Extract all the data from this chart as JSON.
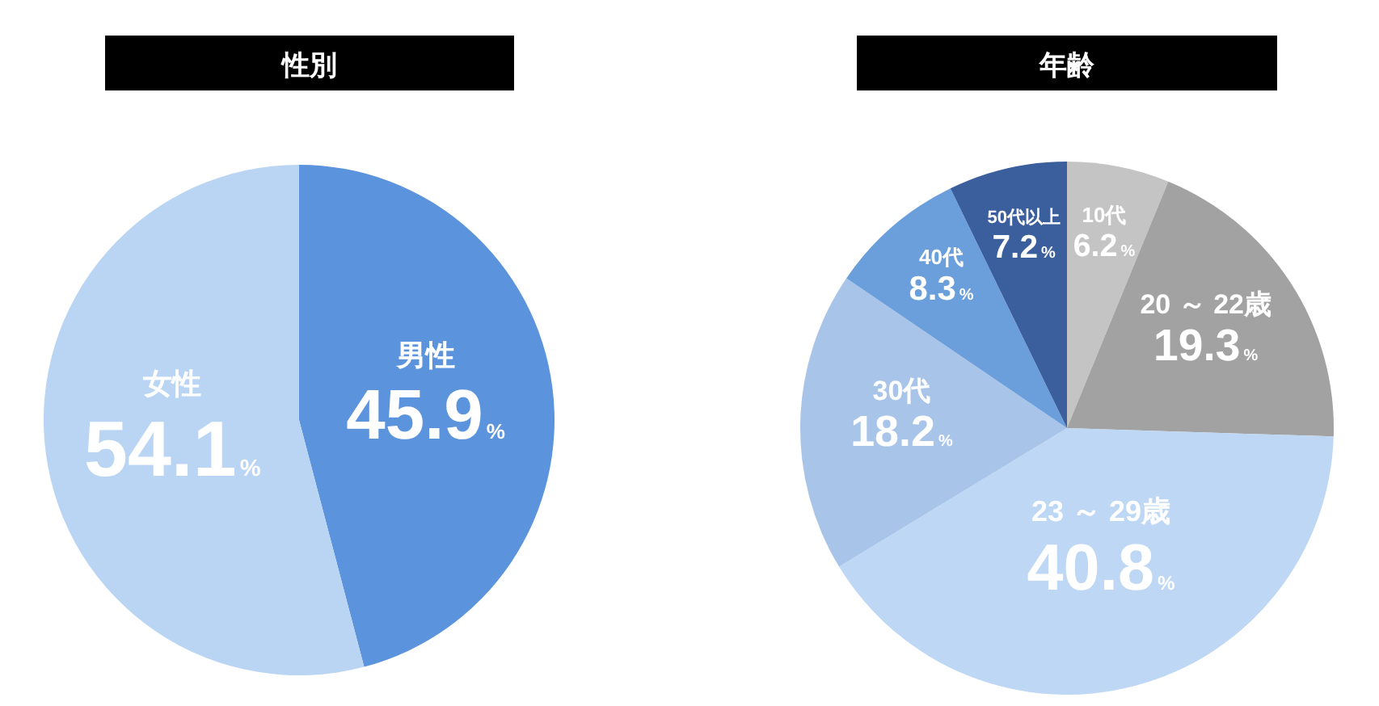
{
  "chart_data": [
    {
      "type": "pie",
      "title": "性別",
      "categories": [
        "男性",
        "女性"
      ],
      "values": [
        45.9,
        54.1
      ],
      "colors": [
        "#5b93dc",
        "#b9d5f3"
      ],
      "value_labels": [
        "45.9%",
        "54.1%"
      ]
    },
    {
      "type": "pie",
      "title": "年齢",
      "categories": [
        "10代",
        "20 ～ 22歳",
        "23 ～ 29歳",
        "30代",
        "40代",
        "50代以上"
      ],
      "values": [
        6.2,
        19.3,
        40.8,
        18.2,
        8.3,
        7.2
      ],
      "colors": [
        "#c4c4c4",
        "#a2a2a2",
        "#bdd7f4",
        "#a8c5e9",
        "#6b9fdc",
        "#3b5f9d"
      ],
      "value_labels": [
        "6.2%",
        "19.3%",
        "40.8%",
        "18.2%",
        "8.3%",
        "7.2%"
      ]
    }
  ]
}
